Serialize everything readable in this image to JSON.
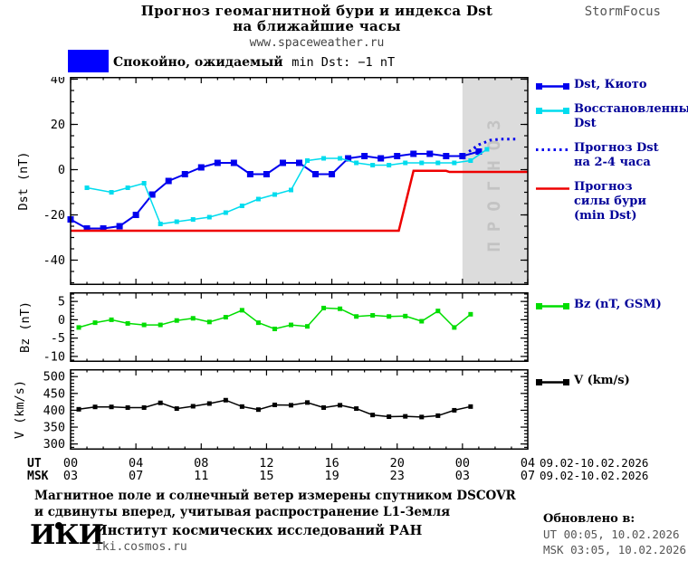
{
  "header": {
    "title_line1": "Прогноз геомагнитной бури и индекса Dst",
    "title_line2": "на ближайшие часы",
    "url": "www.spaceweather.ru",
    "brand": "StormFocus"
  },
  "status": {
    "label_ru": "Спокойно, ожидаемый",
    "label_en": "min Dst: −1 nT",
    "swatch_color": "#0000ff"
  },
  "xaxis": {
    "ut_label": "UT",
    "msk_label": "MSK",
    "ut_ticks": [
      "00",
      "04",
      "08",
      "12",
      "16",
      "20",
      "00",
      "04"
    ],
    "msk_ticks": [
      "03",
      "07",
      "11",
      "15",
      "19",
      "23",
      "03",
      "07"
    ],
    "ut_date": "09.02-10.02.2026",
    "msk_date": "09.02-10.02.2026"
  },
  "chart_data": [
    {
      "type": "line",
      "panel": "dst",
      "ylabel": "Dst (nT)",
      "ylim": [
        -51,
        41
      ],
      "yticks": [
        40,
        20,
        0,
        -20,
        -40
      ],
      "yminor_step": 5,
      "x_hours_range": [
        0,
        28
      ],
      "x_major_step_hours": 4,
      "x_minor_step_hours": 1,
      "forecast_band_hours": [
        24,
        28
      ],
      "forecast_band_label": "ПРОГНОЗ",
      "forecast_band_color": "#dcdcdc",
      "forecast_band_text_color": "#c3c3c3",
      "series": [
        {
          "id": "dst-kyoto",
          "name": "Dst, Киото",
          "color": "#0000ee",
          "style": "line-marker",
          "marker_size": 7,
          "width": 2,
          "x": [
            0,
            1,
            2,
            3,
            4,
            5,
            6,
            7,
            8,
            9,
            10,
            11,
            12,
            13,
            14,
            15,
            16,
            17,
            18,
            19,
            20,
            21,
            22,
            23,
            24,
            25
          ],
          "values": [
            -22,
            -26,
            -26,
            -25,
            -20,
            -11,
            -5,
            -2,
            1,
            3,
            3,
            -2,
            -2,
            3,
            3,
            -2,
            -2,
            5,
            6,
            5,
            6,
            7,
            7,
            6,
            6,
            8
          ]
        },
        {
          "id": "dst-restored",
          "name": "Восстановленный Dst",
          "color": "#00dcee",
          "style": "line-marker",
          "marker_size": 5,
          "width": 1.5,
          "x": [
            1,
            2.5,
            3.5,
            4.5,
            5.5,
            6.5,
            7.5,
            8.5,
            9.5,
            10.5,
            11.5,
            12.5,
            13.5,
            14.5,
            15.5,
            16.5,
            17.5,
            18.5,
            19.5,
            20.5,
            21.5,
            22.5,
            23.5,
            24.5,
            25.5
          ],
          "values": [
            -8,
            -10,
            -8,
            -6,
            -24,
            -23,
            -22,
            -21,
            -19,
            -16,
            -13,
            -11,
            -9,
            4,
            5,
            5,
            3,
            2,
            2,
            3,
            3,
            3,
            3,
            4,
            9
          ]
        },
        {
          "id": "dst-forecast",
          "name": "Прогноз Dst на 2-4 часа",
          "color": "#0000ee",
          "style": "dotted",
          "width": 3,
          "x": [
            24.4,
            25,
            25.7,
            26.3,
            27.4
          ],
          "values": [
            8,
            11,
            13,
            13.5,
            13.5
          ]
        },
        {
          "id": "storm-forecast",
          "name": "Прогноз силы бури (min Dst)",
          "color": "#ee0000",
          "style": "line",
          "width": 2.5,
          "x": [
            0,
            20.1,
            21,
            23,
            23.2,
            28
          ],
          "values": [
            -27,
            -27,
            -0.5,
            -0.5,
            -1,
            -1
          ]
        }
      ],
      "legend": [
        {
          "lines": [
            "Dst, Киото"
          ],
          "color": "#0000ee",
          "style": "line-marker",
          "label_color": "#000099"
        },
        {
          "lines": [
            "Восстановленный",
            "Dst"
          ],
          "color": "#00dcee",
          "style": "line-marker",
          "label_color": "#000099"
        },
        {
          "lines": [
            "Прогноз Dst",
            "на 2-4 часа"
          ],
          "color": "#0000ee",
          "style": "dotted",
          "label_color": "#000099"
        },
        {
          "lines": [
            "Прогноз",
            "силы бури",
            "(min Dst)"
          ],
          "color": "#ee0000",
          "style": "line",
          "label_color": "#000099"
        }
      ]
    },
    {
      "type": "line",
      "panel": "bz",
      "ylabel": "Bz (nT)",
      "ylim": [
        -11.5,
        7.5
      ],
      "yticks": [
        5,
        0,
        -5,
        -10
      ],
      "yminor_step": 1,
      "x_hours_range": [
        0,
        28
      ],
      "x_major_step_hours": 4,
      "x_minor_step_hours": 1,
      "series": [
        {
          "id": "bz",
          "name": "Bz (nT, GSM)",
          "color": "#00dd00",
          "style": "line-marker",
          "marker_size": 5,
          "width": 1.5,
          "x": [
            0.5,
            1.5,
            2.5,
            3.5,
            4.5,
            5.5,
            6.5,
            7.5,
            8.5,
            9.5,
            10.5,
            11.5,
            12.5,
            13.5,
            14.5,
            15.5,
            16.5,
            17.5,
            18.5,
            19.5,
            20.5,
            21.5,
            22.5,
            23.5,
            24.5
          ],
          "values": [
            -2.1,
            -0.8,
            0,
            -1,
            -1.4,
            -1.4,
            -0.2,
            0.4,
            -0.6,
            0.7,
            2.6,
            -0.8,
            -2.5,
            -1.4,
            -1.8,
            3.2,
            3,
            0.9,
            1.2,
            0.9,
            1,
            -0.4,
            2.4,
            -2.1,
            1.5
          ]
        }
      ],
      "legend": [
        {
          "lines": [
            "Bz (nT, GSM)"
          ],
          "color": "#00dd00",
          "style": "line-marker",
          "label_color": "#000099"
        }
      ]
    },
    {
      "type": "line",
      "panel": "v",
      "ylabel": "V (km/s)",
      "ylim": [
        283,
        522
      ],
      "yticks": [
        500,
        450,
        400,
        350,
        300
      ],
      "yminor_step": 10,
      "x_hours_range": [
        0,
        28
      ],
      "x_major_step_hours": 4,
      "x_minor_step_hours": 1,
      "series": [
        {
          "id": "v",
          "name": "V (km/s)",
          "color": "#000000",
          "style": "line-marker",
          "marker_size": 5,
          "width": 1.5,
          "x": [
            0.5,
            1.5,
            2.5,
            3.5,
            4.5,
            5.5,
            6.5,
            7.5,
            8.5,
            9.5,
            10.5,
            11.5,
            12.5,
            13.5,
            14.5,
            15.5,
            16.5,
            17.5,
            18.5,
            19.5,
            20.5,
            21.5,
            22.5,
            23.5,
            24.5
          ],
          "values": [
            403,
            410,
            410,
            408,
            408,
            422,
            405,
            412,
            420,
            430,
            411,
            402,
            416,
            415,
            423,
            408,
            415,
            405,
            386,
            381,
            382,
            380,
            384,
            400,
            411
          ]
        }
      ],
      "legend": [
        {
          "lines": [
            "V (km/s)"
          ],
          "color": "#000000",
          "style": "line-marker",
          "label_color": "#000000"
        }
      ]
    }
  ],
  "footer": {
    "note_line1": "Магнитное поле и солнечный ветер измерены спутником DSCOVR",
    "note_line2": "и сдвинуты вперед, учитывая распространение L1-Земля",
    "logo": "ИКИ",
    "institute": "Институт космических исследований РАН",
    "site": "iki.cosmos.ru",
    "updated_label": "Обновлено в:",
    "updated_ut": "UT  00:05, 10.02.2026",
    "updated_msk": "MSK 03:05, 10.02.2026"
  }
}
